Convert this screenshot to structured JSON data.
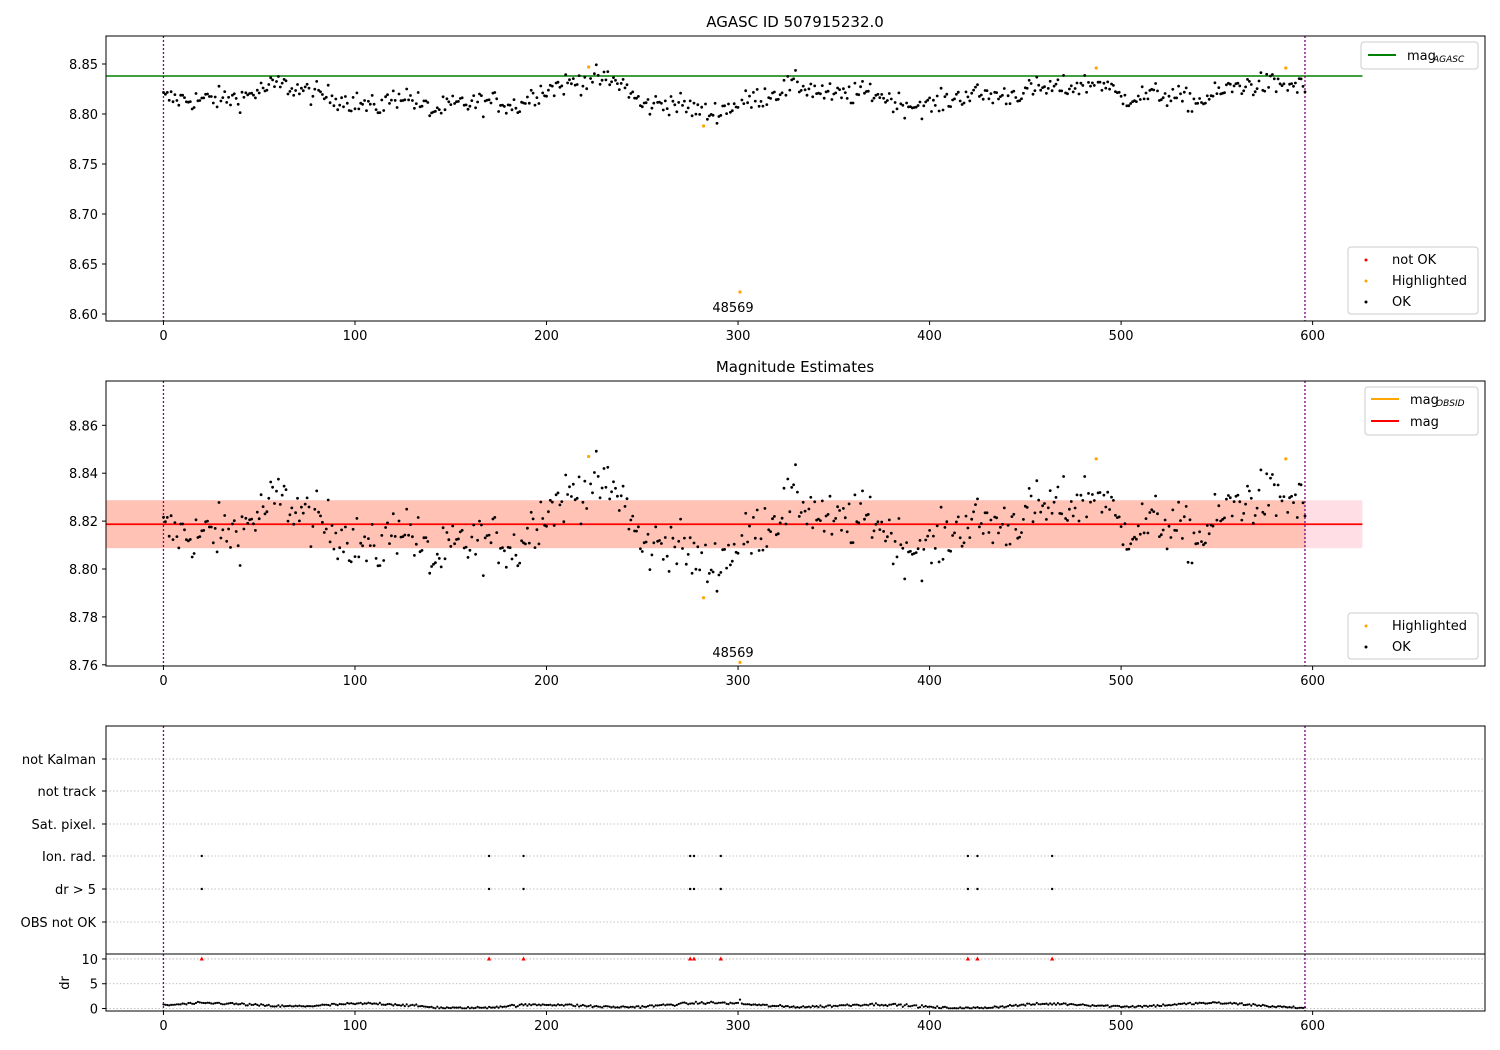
{
  "chart_data": [
    {
      "type": "scatter",
      "title": "AGASC ID 507915232.0",
      "xlim": [
        -30,
        690
      ],
      "ylim": [
        8.593,
        8.878
      ],
      "xticks": [
        0,
        100,
        200,
        300,
        400,
        500,
        600
      ],
      "yticks": [
        8.6,
        8.65,
        8.7,
        8.75,
        8.8,
        8.85
      ],
      "grid": false,
      "legend_top": {
        "placement": "top-right",
        "entries": [
          {
            "label": "mag",
            "subscript": "AGASC",
            "color": "#008000"
          }
        ]
      },
      "legend_bottom": {
        "placement": "bottom-right",
        "entries": [
          {
            "label": "not OK",
            "color": "#ff0000"
          },
          {
            "label": "Highlighted",
            "color": "#ffa500"
          },
          {
            "label": "OK",
            "color": "#000000"
          }
        ]
      },
      "reference_line": {
        "name": "mag_AGASC",
        "y": 8.838,
        "x_range": [
          -30,
          626
        ],
        "color": "#008000"
      },
      "vlines": [
        0,
        596
      ],
      "annotations": [
        {
          "text": "48569",
          "x": 301,
          "y": 8.603
        }
      ],
      "highlighted_points": [
        [
          222,
          8.847
        ],
        [
          282,
          8.788
        ],
        [
          301,
          8.622
        ],
        [
          487,
          8.846
        ],
        [
          586,
          8.846
        ]
      ],
      "ok_points_note": "596 OK samples centered near 8.818 with scatter 8.795–8.845"
    },
    {
      "type": "scatter",
      "title": "Magnitude Estimates",
      "xlim": [
        -30,
        690
      ],
      "ylim": [
        8.7595,
        8.8785
      ],
      "xticks": [
        0,
        100,
        200,
        300,
        400,
        500,
        600
      ],
      "yticks": [
        8.76,
        8.78,
        8.8,
        8.82,
        8.84,
        8.86
      ],
      "grid": false,
      "legend_top": {
        "placement": "top-right",
        "entries": [
          {
            "label": "mag",
            "subscript": "OBSID",
            "color": "#ffa500"
          },
          {
            "label": "mag",
            "subscript": "",
            "color": "#ff0000"
          }
        ]
      },
      "legend_bottom": {
        "placement": "bottom-right",
        "entries": [
          {
            "label": "Highlighted",
            "color": "#ffa500"
          },
          {
            "label": "OK",
            "color": "#000000"
          }
        ]
      },
      "mean_line": {
        "y": 8.8187,
        "x_range": [
          -30,
          626
        ],
        "color": "#ff0000"
      },
      "band_outer": {
        "y": [
          8.8087,
          8.8287
        ],
        "x_range": [
          -30,
          626
        ],
        "color": "#ffc0cb"
      },
      "band_inner": {
        "y": [
          8.8087,
          8.8287
        ],
        "x_range": [
          -30,
          596
        ],
        "color": "#ffa07a"
      },
      "vlines": [
        0,
        596
      ],
      "annotations": [
        {
          "text": "48569",
          "x": 301,
          "y": 8.7625
        }
      ],
      "highlighted_points": [
        [
          222,
          8.847
        ],
        [
          282,
          8.788
        ],
        [
          301,
          8.761
        ],
        [
          487,
          8.846
        ],
        [
          586,
          8.846
        ]
      ]
    },
    {
      "type": "scatter",
      "title": "",
      "xlim": [
        -30,
        690
      ],
      "xticks": [
        0,
        100,
        200,
        300,
        400,
        500,
        600
      ],
      "flag_rows": [
        "not Kalman",
        "not track",
        "Sat. pixel.",
        "Ion. rad.",
        "dr > 5",
        "OBS not OK"
      ],
      "flag_events": {
        "Ion. rad.": [
          20,
          170,
          188,
          275,
          277,
          291,
          420,
          425,
          464
        ],
        "dr > 5": [
          20,
          170,
          188,
          275,
          277,
          291,
          420,
          425,
          464
        ]
      },
      "dr_panel": {
        "ylabel": "dr",
        "ylim": [
          -0.5,
          11
        ],
        "yticks": [
          0,
          5,
          10
        ],
        "dr_clipped_points": [
          20,
          170,
          188,
          275,
          277,
          291,
          420,
          425,
          464
        ],
        "clip_value": 10
      },
      "vlines": [
        0,
        596
      ]
    }
  ]
}
